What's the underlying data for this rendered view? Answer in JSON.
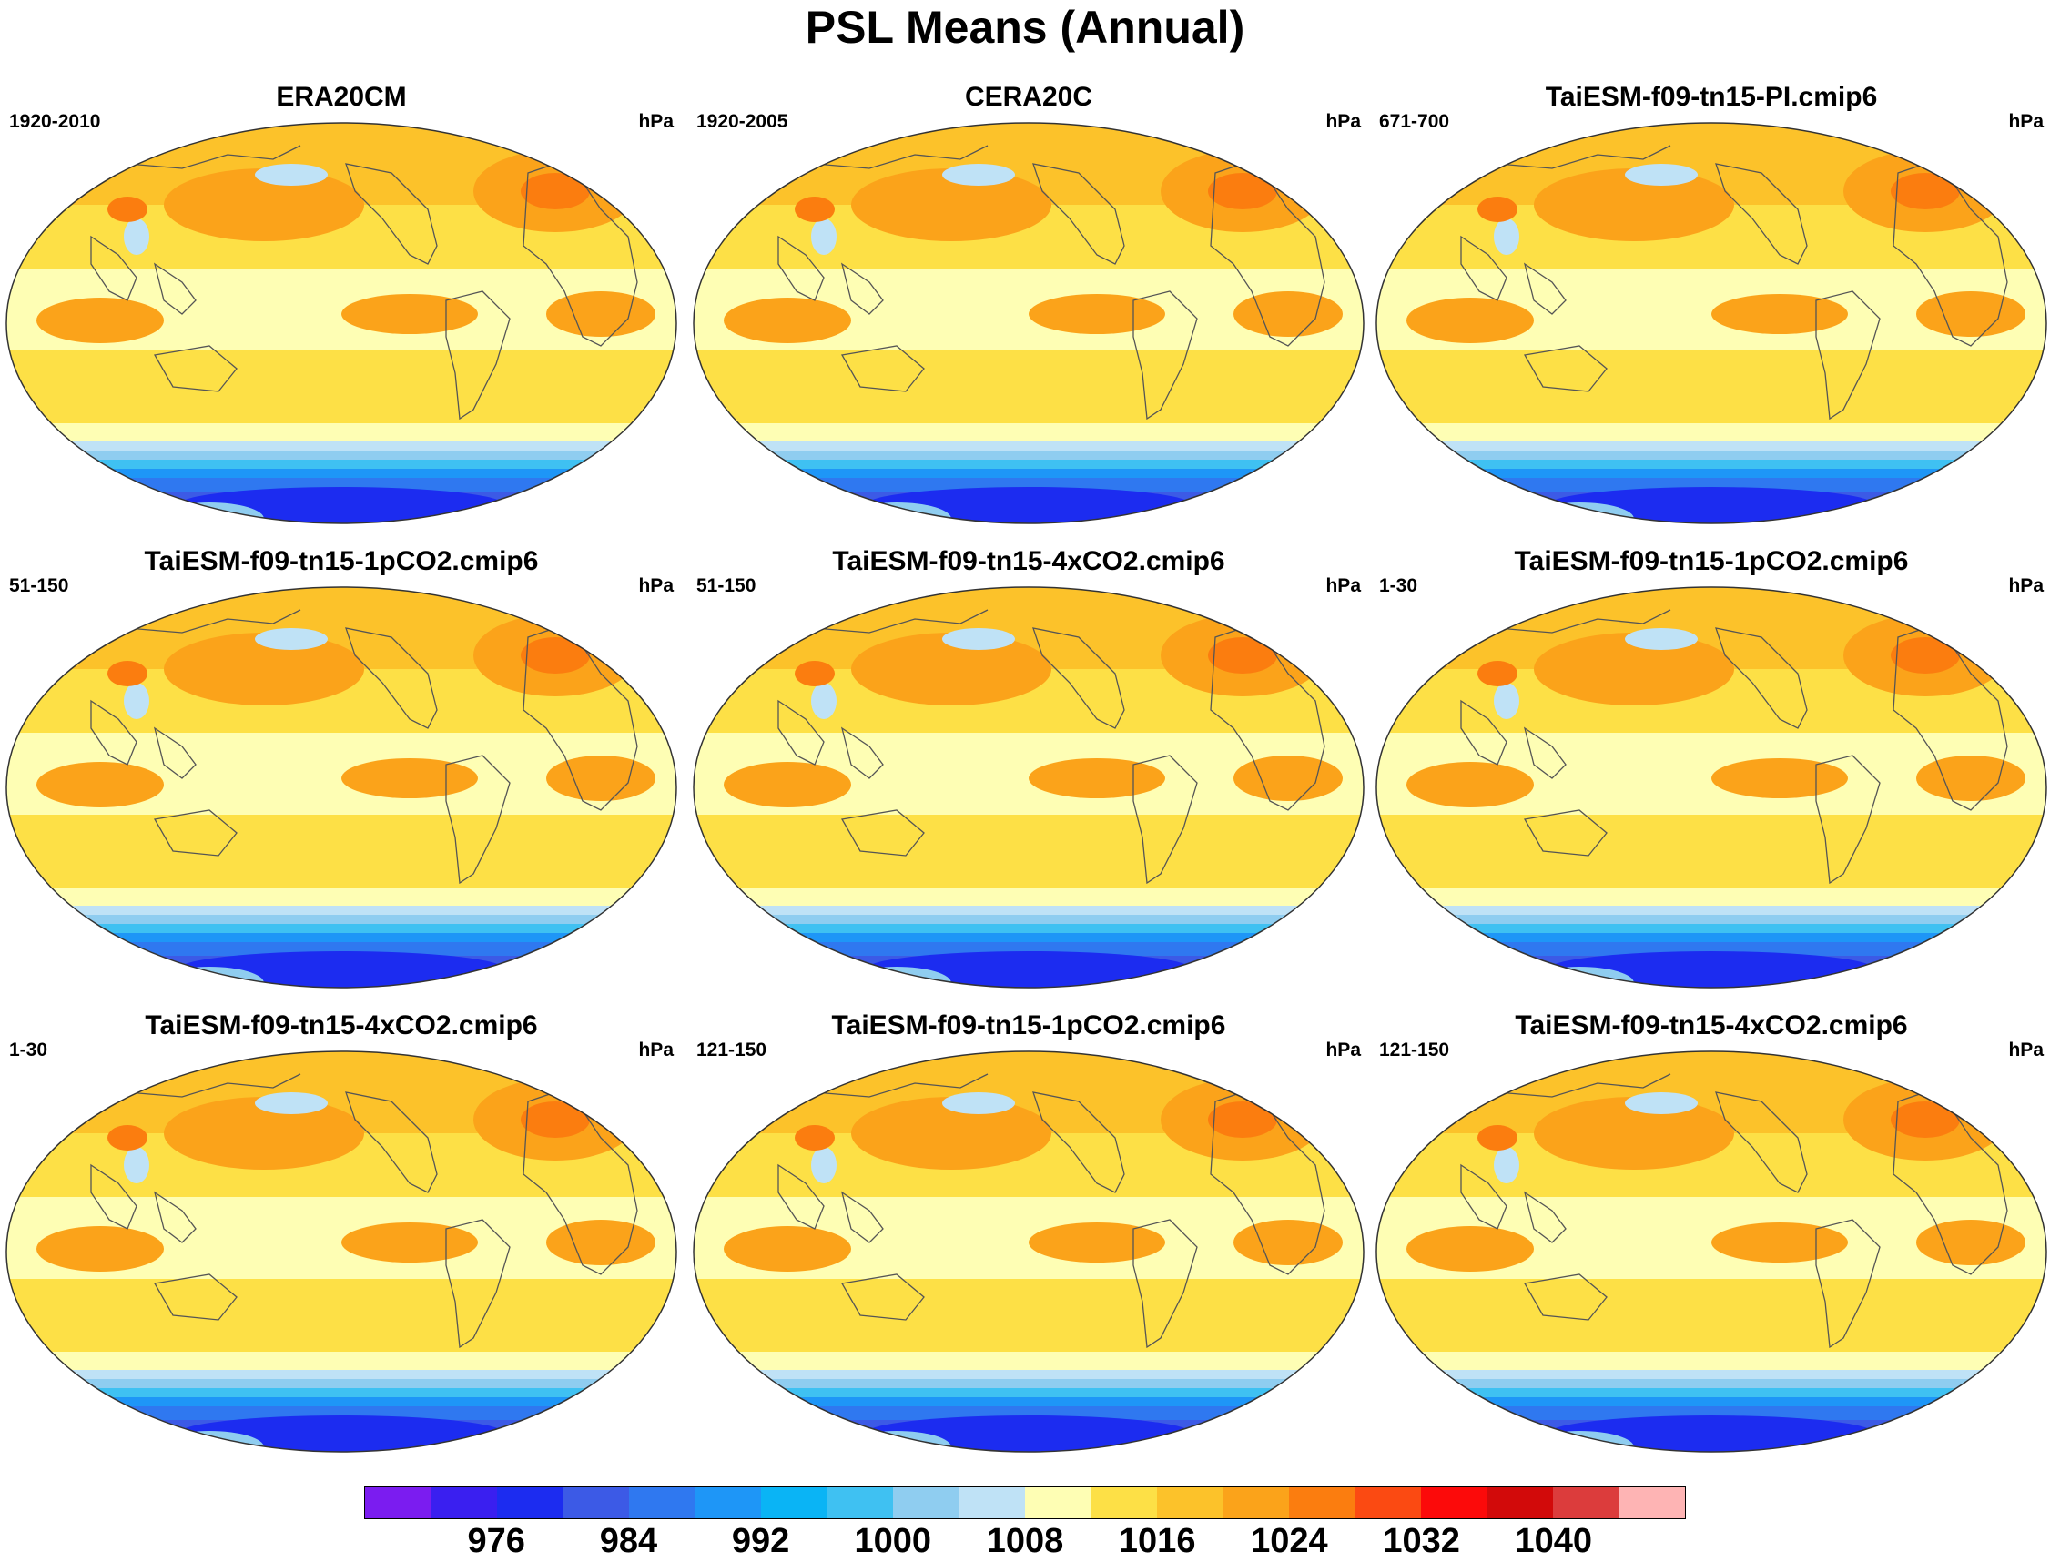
{
  "title": "PSL Means (Annual)",
  "units": "hPa",
  "panels": [
    {
      "title": "ERA20CM",
      "period": "1920-2010",
      "units": "hPa"
    },
    {
      "title": "CERA20C",
      "period": "1920-2005",
      "units": "hPa"
    },
    {
      "title": "TaiESM-f09-tn15-PI.cmip6",
      "period": "671-700",
      "units": "hPa"
    },
    {
      "title": "TaiESM-f09-tn15-1pCO2.cmip6",
      "period": "51-150",
      "units": "hPa"
    },
    {
      "title": "TaiESM-f09-tn15-4xCO2.cmip6",
      "period": "51-150",
      "units": "hPa"
    },
    {
      "title": "TaiESM-f09-tn15-1pCO2.cmip6",
      "period": "1-30",
      "units": "hPa"
    },
    {
      "title": "TaiESM-f09-tn15-4xCO2.cmip6",
      "period": "1-30",
      "units": "hPa"
    },
    {
      "title": "TaiESM-f09-tn15-1pCO2.cmip6",
      "period": "121-150",
      "units": "hPa"
    },
    {
      "title": "TaiESM-f09-tn15-4xCO2.cmip6",
      "period": "121-150",
      "units": "hPa"
    }
  ],
  "colorbar": {
    "colors": [
      "#7b1cf0",
      "#3a1ff0",
      "#1c2cf0",
      "#3c5ae6",
      "#2f78f0",
      "#1e96f7",
      "#0ab4f5",
      "#3fc1f2",
      "#8fcdf0",
      "#bfe2f6",
      "#fefeb4",
      "#fde046",
      "#fcc22a",
      "#fba31a",
      "#fb7d0f",
      "#fb4a12",
      "#fc0a0a",
      "#d20a0a",
      "#dc3c3c",
      "#feb4b4"
    ],
    "labels": [
      "976",
      "984",
      "992",
      "1000",
      "1008",
      "1016",
      "1024",
      "1032",
      "1040"
    ],
    "label_positions": [
      2,
      4,
      6,
      8,
      10,
      12,
      14,
      16,
      18
    ]
  }
}
